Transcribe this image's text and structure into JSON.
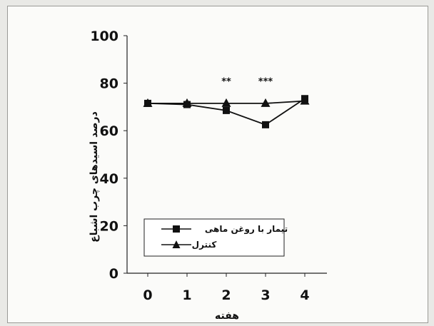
{
  "chart_data": {
    "type": "line",
    "title": "",
    "xlabel": "هفته",
    "ylabel": "درصد اسیدهای چرب اشباع",
    "categories": [
      "0",
      "1",
      "2",
      "3",
      "4"
    ],
    "yticks": [
      "0",
      "20",
      "40",
      "60",
      "80",
      "100"
    ],
    "ylim": [
      0,
      100
    ],
    "grid": false,
    "legend_position": "bottom-center",
    "series": [
      {
        "name": "تیمار با روغن ماهی",
        "marker": "square",
        "color": "#111111",
        "values": [
          71.5,
          71,
          68.5,
          62.5,
          73.5
        ]
      },
      {
        "name": "کنترل",
        "marker": "triangle",
        "color": "#111111",
        "values": [
          71.5,
          71.5,
          71.5,
          71.5,
          72.5
        ]
      }
    ],
    "annotations": [
      {
        "x": "2",
        "y": 80,
        "text": "**"
      },
      {
        "x": "3",
        "y": 80,
        "text": "***"
      }
    ]
  }
}
